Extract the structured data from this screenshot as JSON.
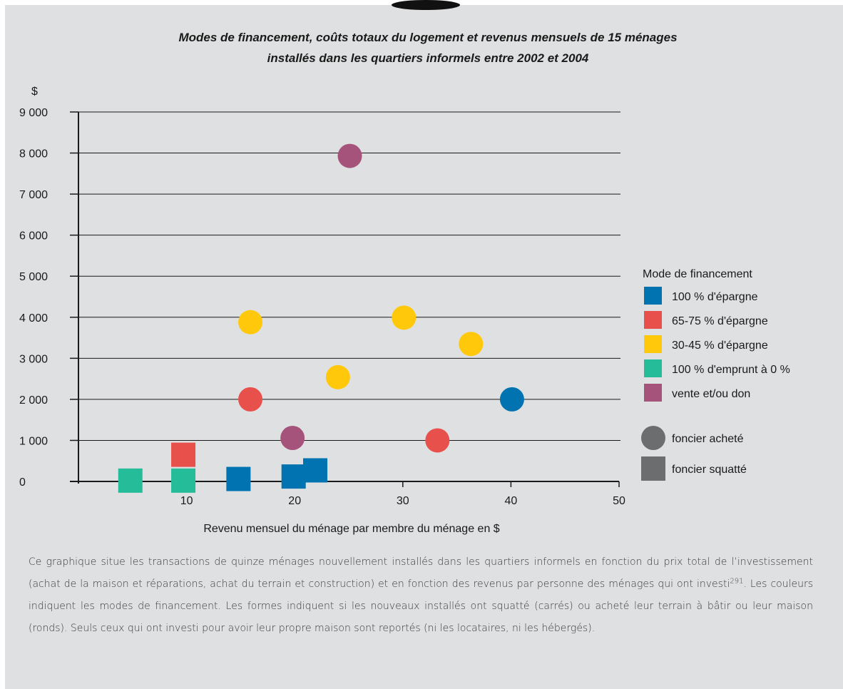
{
  "chart_data": {
    "type": "scatter",
    "title": "Modes de financement, coûts totaux du logement et revenus mensuels de 15 ménages installés dans les quartiers informels entre 2002 et 2004",
    "title_lines": [
      "Modes de financement, coûts totaux du logement et revenus mensuels de 15 ménages",
      "installés dans les quartiers informels entre 2002 et 2004"
    ],
    "xlabel": "Revenu mensuel du ménage par membre du ménage en $",
    "ylabel": "$",
    "xlim": [
      0,
      50
    ],
    "ylim": [
      0,
      9000
    ],
    "x_ticks": [
      10,
      20,
      30,
      40,
      50
    ],
    "x_tick_labels": [
      "10",
      "20",
      "30",
      "40",
      "50"
    ],
    "y_ticks": [
      0,
      1000,
      2000,
      3000,
      4000,
      5000,
      6000,
      7000,
      8000,
      9000
    ],
    "y_tick_labels": [
      "0",
      "1 000",
      "2 000",
      "3 000",
      "4 000",
      "5 000",
      "6 000",
      "7 000",
      "8 000",
      "9 000"
    ],
    "grid": "horizontal",
    "legend_position": "right",
    "legend_title": "Mode de financement",
    "series": [
      {
        "name": "100 % d'épargne",
        "key": "s100",
        "color": "#0073b0",
        "points": [
          {
            "x": 40.1,
            "y": 2000,
            "shape": "circle"
          },
          {
            "x": 14.8,
            "y": 60,
            "shape": "square"
          },
          {
            "x": 19.9,
            "y": 120,
            "shape": "square"
          },
          {
            "x": 21.9,
            "y": 270,
            "shape": "square"
          }
        ]
      },
      {
        "name": "65-75 % d'épargne",
        "key": "s65",
        "color": "#e8504b",
        "points": [
          {
            "x": 15.9,
            "y": 2000,
            "shape": "circle"
          },
          {
            "x": 33.2,
            "y": 1000,
            "shape": "circle"
          },
          {
            "x": 9.7,
            "y": 650,
            "shape": "square"
          }
        ]
      },
      {
        "name": "30-45 % d'épargne",
        "key": "s30",
        "color": "#ffc80a",
        "points": [
          {
            "x": 15.9,
            "y": 3880,
            "shape": "circle"
          },
          {
            "x": 30.1,
            "y": 3990,
            "shape": "circle"
          },
          {
            "x": 24.0,
            "y": 2540,
            "shape": "circle"
          },
          {
            "x": 36.3,
            "y": 3350,
            "shape": "circle"
          }
        ]
      },
      {
        "name": "100 % d'emprunt à 0 %",
        "key": "s0",
        "color": "#25bd99",
        "points": [
          {
            "x": 4.8,
            "y": 20,
            "shape": "square"
          },
          {
            "x": 9.7,
            "y": 20,
            "shape": "square"
          }
        ]
      },
      {
        "name": "vente et/ou don",
        "key": "vd",
        "color": "#a6537c",
        "points": [
          {
            "x": 25.1,
            "y": 7930,
            "shape": "circle"
          },
          {
            "x": 19.8,
            "y": 1060,
            "shape": "circle"
          }
        ]
      }
    ],
    "shape_legend": [
      {
        "label": "foncier acheté",
        "shape": "circle",
        "color": "#6b6d6f"
      },
      {
        "label": "foncier squatté",
        "shape": "square",
        "color": "#6b6d6f"
      }
    ]
  },
  "caption": {
    "text_before": "Ce graphique situe les transactions de quinze ménages nouvellement installés dans les quartiers informels en fonction du prix total de l’investissement (achat de la maison et réparations, achat du terrain et construction) et en fonction des revenus par personne des ménages qui ont investi",
    "footnote": "291",
    "text_after": ". Les couleurs indiquent les modes de financement. Les formes indiquent si les nouveaux installés ont squatté (carrés) ou acheté leur terrain à bâtir ou leur maison (ronds). Seuls ceux qui ont investi pour avoir leur propre maison sont reportés (ni les locataires, ni les hébergés)."
  },
  "colors": {
    "panel_background": "#dfe0e1",
    "tab": "#111111",
    "axis": "#1a1a1a"
  }
}
